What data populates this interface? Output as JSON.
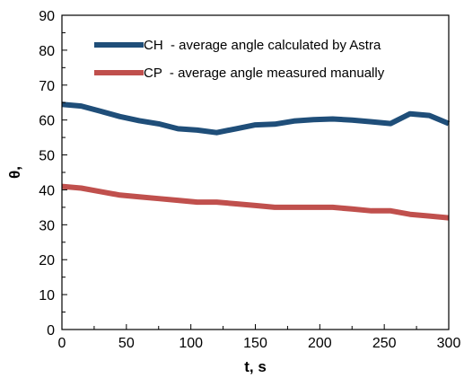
{
  "chart_data": {
    "type": "line",
    "xlabel": "t, s",
    "ylabel": "θ,",
    "xlim": [
      0,
      300
    ],
    "ylim": [
      0,
      90
    ],
    "x_ticks": [
      0,
      50,
      100,
      150,
      200,
      250,
      300
    ],
    "y_ticks": [
      0,
      10,
      20,
      30,
      40,
      50,
      60,
      70,
      80,
      90
    ],
    "grid": false,
    "legend_position": "top-right",
    "series": [
      {
        "name": "CH  - average angle calculated by Astra",
        "color": "#1f4e79",
        "x": [
          0,
          15,
          30,
          45,
          60,
          75,
          90,
          105,
          120,
          135,
          150,
          165,
          180,
          195,
          210,
          225,
          240,
          255,
          270,
          285,
          300
        ],
        "y": [
          64.5,
          64,
          62.5,
          61,
          59.8,
          58.9,
          57.5,
          57.1,
          56.4,
          57.5,
          58.6,
          58.8,
          59.7,
          60.1,
          60.3,
          60,
          59.5,
          59,
          61.8,
          61.3,
          59
        ]
      },
      {
        "name": "CP  - average angle measured manually",
        "color": "#c0504d",
        "x": [
          0,
          15,
          30,
          45,
          60,
          75,
          90,
          105,
          120,
          135,
          150,
          165,
          180,
          195,
          210,
          225,
          240,
          255,
          270,
          285,
          300
        ],
        "y": [
          41,
          40.5,
          39.5,
          38.5,
          38,
          37.5,
          37,
          36.5,
          36.5,
          36,
          35.5,
          35,
          35,
          35,
          35,
          34.5,
          34,
          34,
          33,
          32.5,
          32
        ]
      }
    ]
  }
}
